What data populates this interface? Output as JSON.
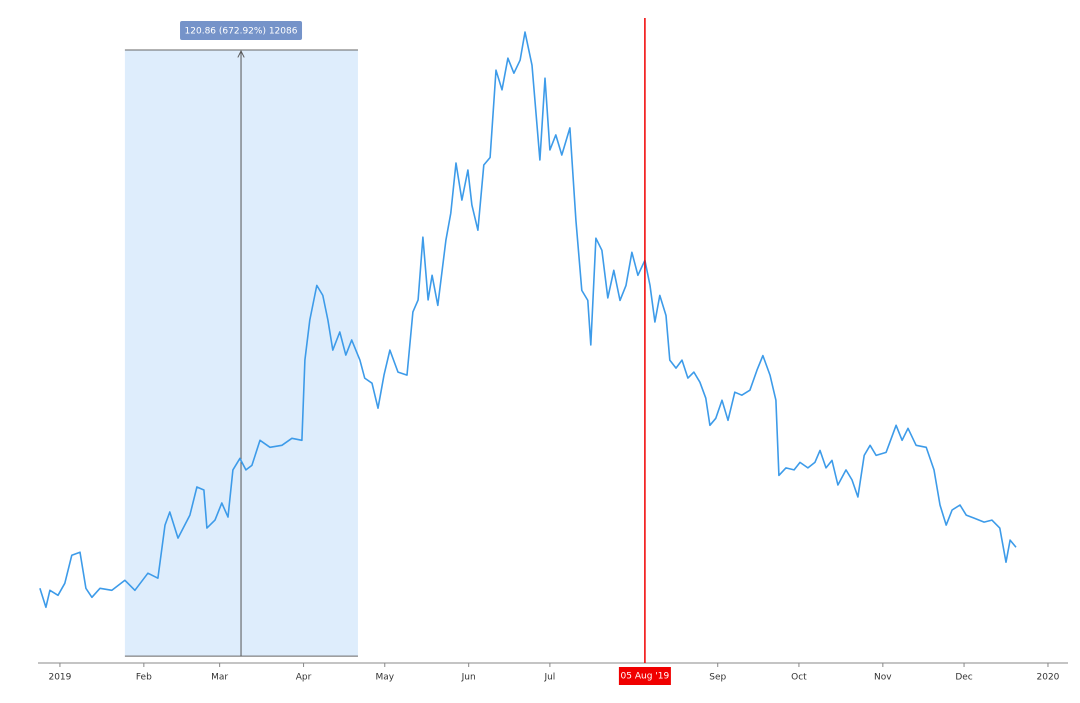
{
  "chart_data": {
    "type": "line",
    "x": [
      -7.4,
      -5.2,
      -3.7,
      -0.7,
      1.8,
      4.4,
      7.4,
      9.6,
      11.8,
      14.8,
      19.2,
      24.0,
      27.7,
      32.5,
      36.2,
      38.8,
      40.6,
      43.6,
      48.0,
      50.6,
      53.2,
      54.3,
      57.3,
      59.8,
      62.1,
      63.9,
      66.5,
      68.7,
      70.9,
      73.9,
      77.6,
      82.0,
      85.7,
      89.4,
      90.5,
      92.3,
      94.9,
      97.1,
      99.0,
      100.8,
      103.4,
      105.6,
      107.8,
      110.8,
      112.6,
      115.3,
      117.5,
      119.7,
      121.9,
      124.9,
      128.2,
      130.4,
      132.3,
      134.1,
      136.0,
      137.5,
      139.6,
      142.6,
      144.4,
      146.3,
      148.5,
      150.7,
      152.2,
      154.4,
      156.6,
      158.9,
      161.1,
      163.3,
      165.5,
      167.7,
      170.0,
      171.8,
      174.4,
      177.3,
      179.2,
      181.0,
      183.2,
      185.4,
      188.4,
      190.6,
      192.8,
      195.0,
      196.1,
      198.0,
      200.2,
      202.4,
      204.6,
      206.9,
      209.1,
      211.3,
      213.5,
      216.1,
      218.0,
      219.8,
      221.6,
      223.9,
      225.3,
      227.6,
      229.8,
      232.0,
      234.2,
      236.4,
      238.6,
      240.1,
      242.3,
      244.6,
      246.8,
      249.3,
      251.9,
      254.9,
      257.5,
      259.7,
      262.3,
      264.5,
      265.6,
      268.2,
      271.2,
      273.4,
      276.3,
      278.9,
      280.8,
      283.0,
      285.2,
      287.4,
      290.4,
      292.6,
      294.8,
      297.1,
      299.3,
      301.5,
      305.2,
      308.9,
      311.1,
      313.3,
      316.3,
      320.0,
      322.9,
      325.1,
      327.4,
      329.6,
      332.5,
      334.8,
      337.7,
      341.4,
      344.3,
      347.2,
      349.5,
      351.0,
      353.2
    ],
    "series": [
      {
        "color": "#3d9be9",
        "values": [
          31.5,
          27.7,
          31.1,
          30.1,
          32.5,
          38.1,
          38.7,
          31.5,
          29.7,
          31.5,
          31.1,
          33.1,
          31.1,
          34.5,
          33.5,
          44.1,
          46.7,
          41.5,
          46.1,
          51.7,
          51.1,
          43.5,
          45.1,
          48.5,
          45.7,
          55.1,
          57.4,
          55.1,
          56.0,
          61.0,
          59.6,
          60.0,
          61.4,
          61.0,
          77.0,
          85.0,
          91.9,
          89.9,
          85.0,
          79.0,
          82.6,
          78.0,
          81.0,
          77.0,
          73.4,
          72.4,
          67.4,
          74.0,
          79.0,
          74.6,
          74.0,
          86.6,
          89.0,
          101.5,
          89.0,
          93.9,
          87.9,
          100.9,
          106.3,
          116.3,
          108.9,
          114.9,
          107.9,
          102.9,
          115.9,
          117.4,
          134.8,
          130.9,
          137.2,
          134.2,
          136.8,
          142.4,
          135.8,
          116.9,
          133.2,
          118.9,
          121.9,
          117.9,
          123.3,
          104.9,
          90.9,
          88.9,
          80.0,
          101.3,
          98.9,
          89.4,
          94.9,
          88.9,
          91.9,
          98.5,
          93.9,
          96.9,
          91.9,
          84.6,
          89.9,
          85.9,
          77.0,
          75.4,
          77.0,
          73.4,
          74.6,
          72.6,
          69.4,
          64.0,
          65.4,
          69.0,
          65.0,
          70.6,
          70.0,
          71.0,
          75.0,
          77.9,
          74.0,
          69.0,
          54.0,
          55.5,
          55.1,
          56.6,
          55.5,
          56.6,
          59.0,
          55.5,
          57.0,
          52.1,
          55.1,
          53.1,
          49.7,
          58.0,
          60.0,
          58.0,
          58.6,
          64.0,
          61.0,
          63.4,
          60.0,
          59.6,
          55.1,
          48.1,
          44.1,
          47.1,
          48.1,
          46.1,
          45.5,
          44.7,
          45.1,
          43.5,
          36.7,
          41.1,
          39.7
        ]
      }
    ],
    "xlim": [
      -8.1,
      372.4
    ],
    "xticks": [
      {
        "value": 0,
        "label": "2019"
      },
      {
        "value": 31,
        "label": "Feb"
      },
      {
        "value": 59,
        "label": "Mar"
      },
      {
        "value": 90,
        "label": "Apr"
      },
      {
        "value": 120,
        "label": "May"
      },
      {
        "value": 151,
        "label": "Jun"
      },
      {
        "value": 181,
        "label": "Jul"
      },
      {
        "value": 243,
        "label": "Sep"
      },
      {
        "value": 273,
        "label": "Oct"
      },
      {
        "value": 304,
        "label": "Nov"
      },
      {
        "value": 334,
        "label": "Dec"
      },
      {
        "value": 365,
        "label": "2020"
      }
    ],
    "ylim": [
      16.6,
      148.8
    ],
    "range_tool": {
      "x": [
        24.0,
        110.1
      ],
      "y": [
        17.96,
        138.82
      ],
      "arrow_x": 66.9,
      "label": "120.86 (672.92%) 12086",
      "color": "#deedfc",
      "label_color": "#7593c9"
    },
    "crosshair": {
      "x": 216.1,
      "label": "05 Aug '19",
      "color": "#f00000"
    }
  }
}
